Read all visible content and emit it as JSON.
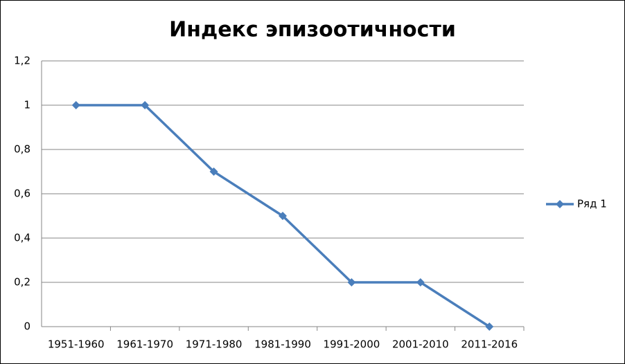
{
  "chart_data": {
    "type": "line",
    "title": "Индекс эпизоотичности",
    "categories": [
      "1951-1960",
      "1961-1970",
      "1971-1980",
      "1981-1990",
      "1991-2000",
      "2001-2010",
      "2011-2016"
    ],
    "series": [
      {
        "name": "Ряд 1",
        "color": "#4a7ebb",
        "values": [
          1,
          1,
          0.7,
          0.5,
          0.2,
          0.2,
          0
        ]
      }
    ],
    "ylim": [
      0,
      1.2
    ],
    "yticks": [
      0,
      {
        "value": 0.2,
        "label": "0,2"
      },
      {
        "value": 0.4,
        "label": "0,4"
      },
      {
        "value": 0.6,
        "label": "0,6"
      },
      {
        "value": 0.8,
        "label": "0,8"
      },
      1,
      {
        "value": 1.2,
        "label": "1,2"
      }
    ],
    "grid": true,
    "legend": "right"
  }
}
